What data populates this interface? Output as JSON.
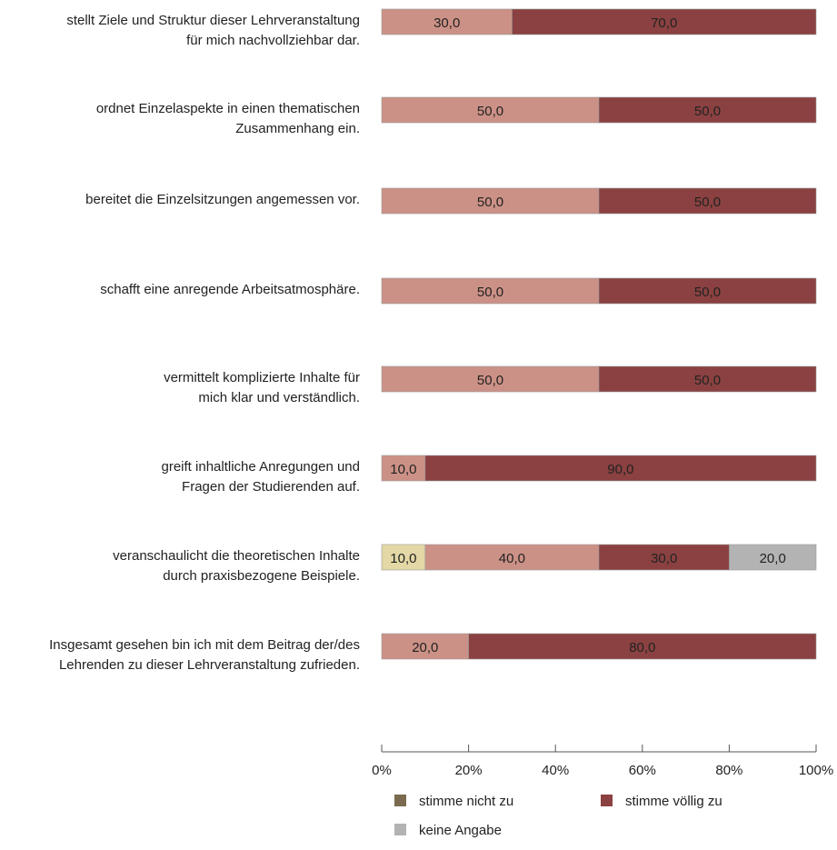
{
  "chart_data": {
    "type": "bar",
    "orientation": "horizontal",
    "stacked": true,
    "categories": [
      [
        "stellt Ziele und Struktur dieser Lehrveranstaltung",
        "für mich nachvollziehbar dar."
      ],
      [
        "ordnet Einzelaspekte in einen thematischen",
        "Zusammenhang ein."
      ],
      [
        "bereitet die Einzelsitzungen angemessen vor."
      ],
      [
        "schafft eine anregende Arbeitsatmosphäre."
      ],
      [
        "vermittelt komplizierte Inhalte für",
        "mich klar und verständlich."
      ],
      [
        "greift inhaltliche Anregungen und",
        "Fragen der Studierenden auf."
      ],
      [
        "veranschaulicht die theoretischen Inhalte",
        "durch praxisbezogene Beispiele."
      ],
      [
        "Insgesamt gesehen bin ich mit dem Beitrag der/des",
        "Lehrenden zu dieser Lehrveranstaltung zufrieden."
      ]
    ],
    "series": [
      {
        "key": "nicht",
        "color": "#7a6a4f",
        "values": [
          0,
          0,
          0,
          0,
          0,
          0,
          0,
          0
        ]
      },
      {
        "key": "eher_nicht",
        "color": "#e3d8a6",
        "values": [
          0,
          0,
          0,
          0,
          0,
          0,
          10,
          0
        ]
      },
      {
        "key": "eher",
        "color": "#cc9186",
        "values": [
          30,
          50,
          50,
          50,
          50,
          10,
          40,
          20
        ]
      },
      {
        "key": "voellig",
        "color": "#8b4141",
        "values": [
          70,
          50,
          50,
          50,
          50,
          90,
          30,
          80
        ]
      },
      {
        "key": "keine",
        "color": "#b3b3b3",
        "values": [
          0,
          0,
          0,
          0,
          0,
          0,
          20,
          0
        ]
      }
    ],
    "data_labels": [
      [
        "30,0",
        "70,0"
      ],
      [
        "50,0",
        "50,0"
      ],
      [
        "50,0",
        "50,0"
      ],
      [
        "50,0",
        "50,0"
      ],
      [
        "50,0",
        "50,0"
      ],
      [
        "10,0",
        "90,0"
      ],
      [
        "10,0",
        "40,0",
        "30,0",
        "20,0"
      ],
      [
        "20,0",
        "80,0"
      ]
    ],
    "xlim": [
      0,
      100
    ],
    "ticks": [
      "0%",
      "20%",
      "40%",
      "60%",
      "80%",
      "100%"
    ],
    "grid": false,
    "legend_position": "bottom",
    "legend": [
      {
        "label": "stimme nicht zu",
        "color": "#7a6a4f"
      },
      {
        "label": "stimme völlig zu",
        "color": "#8b4141"
      },
      {
        "label": "keine Angabe",
        "color": "#b3b3b3"
      }
    ]
  }
}
